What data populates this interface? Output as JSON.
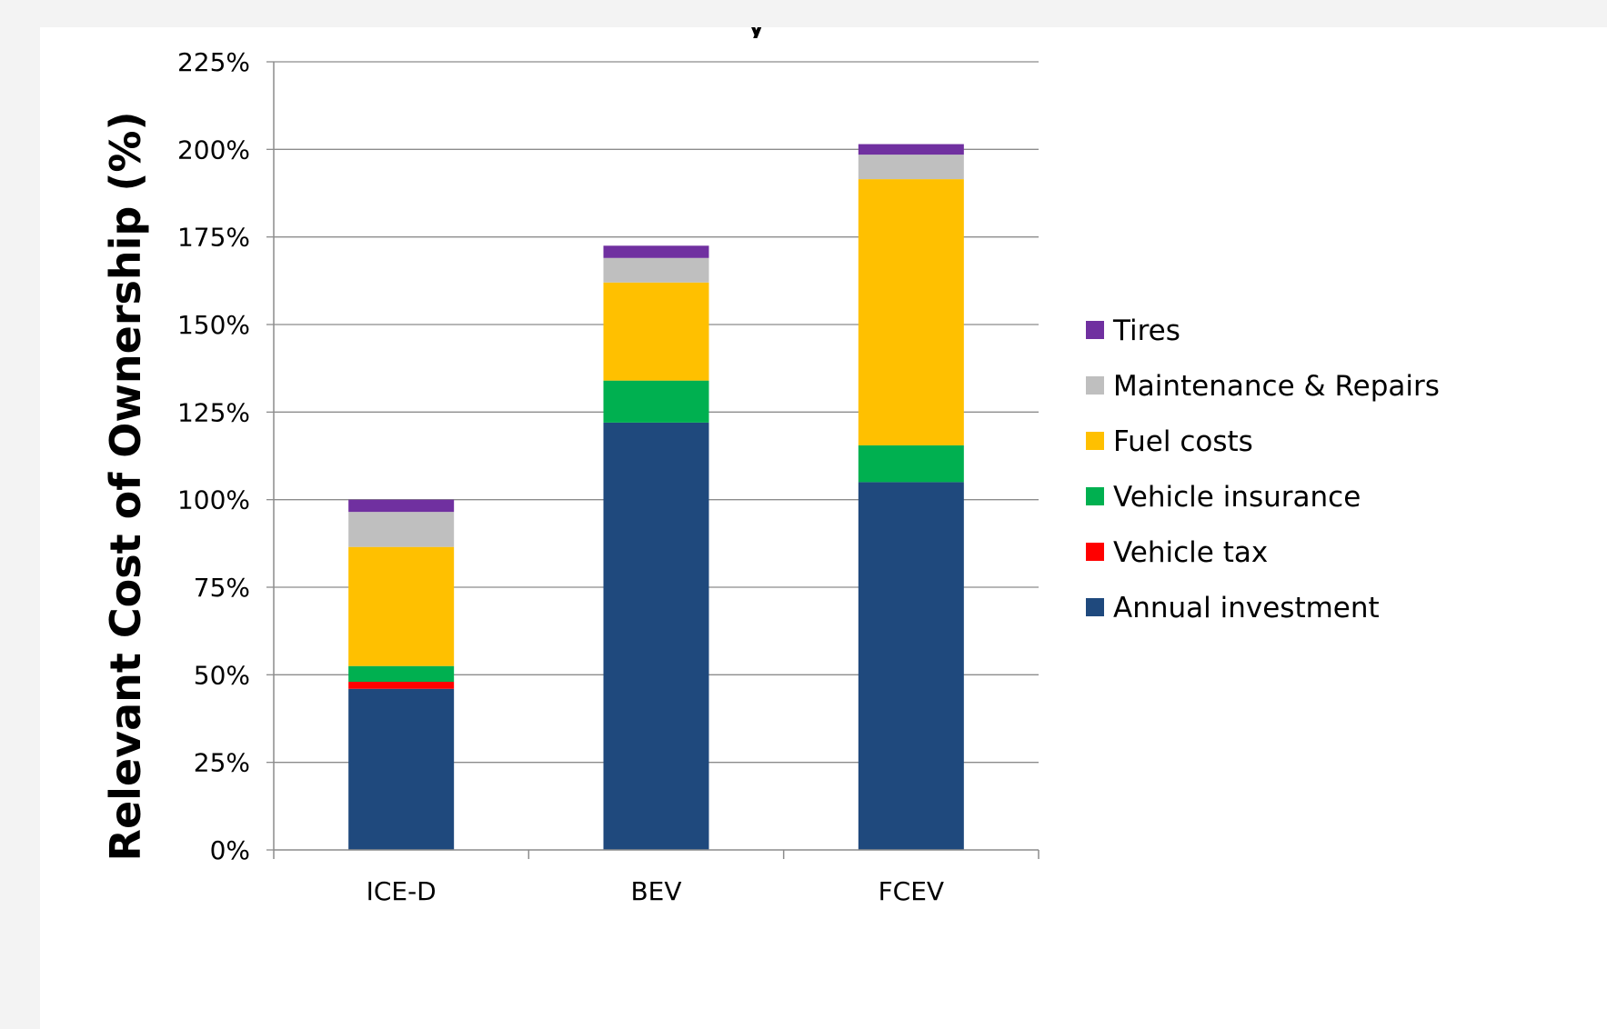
{
  "chart_data": {
    "type": "bar",
    "stacked": true,
    "title": "",
    "xlabel": "",
    "ylabel": "Relevant Cost of Ownership (%)",
    "ylim": [
      0,
      225
    ],
    "yticks": [
      0,
      25,
      50,
      75,
      100,
      125,
      150,
      175,
      200,
      225
    ],
    "ytick_labels": [
      "0%",
      "25%",
      "50%",
      "75%",
      "100%",
      "125%",
      "150%",
      "175%",
      "200%",
      "225%"
    ],
    "grid": true,
    "legend_position": "right",
    "categories": [
      "ICE-D",
      "BEV",
      "FCEV"
    ],
    "series": [
      {
        "name": "Annual investment",
        "color": "#1f497d",
        "values": [
          46,
          122,
          105
        ]
      },
      {
        "name": "Vehicle tax",
        "color": "#ff0000",
        "values": [
          2,
          0,
          0
        ]
      },
      {
        "name": "Vehicle insurance",
        "color": "#00b050",
        "values": [
          4.5,
          12,
          10.5
        ]
      },
      {
        "name": "Fuel costs",
        "color": "#ffc000",
        "values": [
          34,
          28,
          76
        ]
      },
      {
        "name": "Maintenance & Repairs",
        "color": "#bfbfbf",
        "values": [
          10,
          7,
          7
        ]
      },
      {
        "name": "Tires",
        "color": "#7030a0",
        "values": [
          3.5,
          3.5,
          3
        ]
      }
    ]
  }
}
